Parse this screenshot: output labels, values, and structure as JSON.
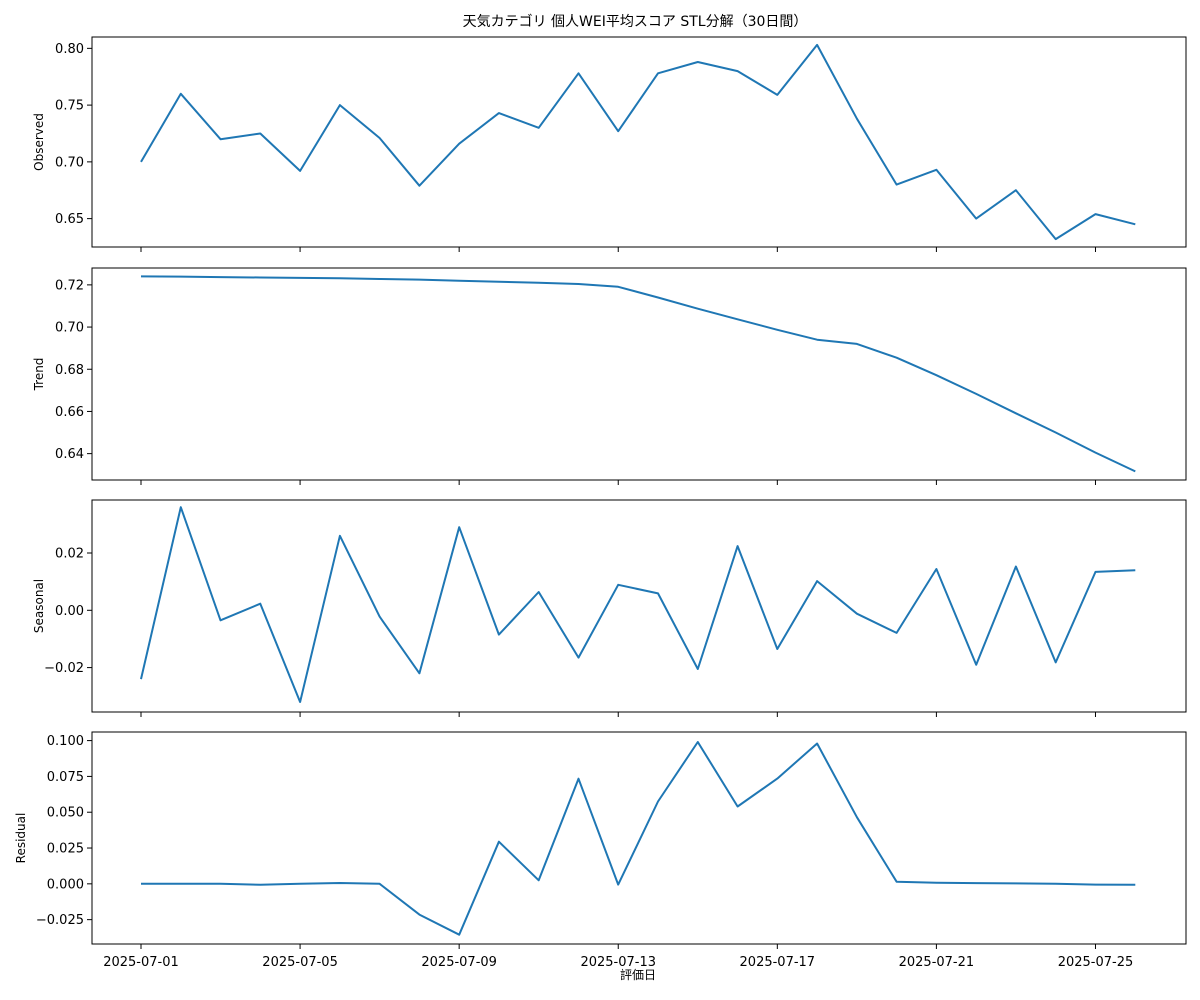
{
  "figure": {
    "title": "天気カテゴリ 個人WEI平均スコア STL分解（30日間）",
    "xlabel": "評価日"
  },
  "colors": {
    "line": "#1f77b4",
    "axes": "#000000",
    "background": "#ffffff"
  },
  "chart_data": [
    {
      "type": "line",
      "name": "observed",
      "ylabel": "Observed",
      "ylim": [
        0.625,
        0.81
      ],
      "yticks": [
        0.65,
        0.7,
        0.75,
        0.8
      ],
      "ytick_labels": [
        "0.65",
        "0.70",
        "0.75",
        "0.80"
      ],
      "x": [
        "2025-07-01",
        "2025-07-02",
        "2025-07-03",
        "2025-07-04",
        "2025-07-05",
        "2025-07-06",
        "2025-07-07",
        "2025-07-08",
        "2025-07-09",
        "2025-07-10",
        "2025-07-11",
        "2025-07-12",
        "2025-07-13",
        "2025-07-14",
        "2025-07-15",
        "2025-07-16",
        "2025-07-17",
        "2025-07-18",
        "2025-07-19",
        "2025-07-20",
        "2025-07-21",
        "2025-07-22",
        "2025-07-23",
        "2025-07-24",
        "2025-07-25",
        "2025-07-26"
      ],
      "values": [
        0.7,
        0.76,
        0.72,
        0.725,
        0.692,
        0.75,
        0.721,
        0.679,
        0.716,
        0.743,
        0.73,
        0.778,
        0.727,
        0.778,
        0.788,
        0.78,
        0.759,
        0.803,
        0.738,
        0.68,
        0.693,
        0.65,
        0.675,
        0.632,
        0.654,
        0.645
      ]
    },
    {
      "type": "line",
      "name": "trend",
      "ylabel": "Trend",
      "ylim": [
        0.6275,
        0.728
      ],
      "yticks": [
        0.64,
        0.66,
        0.68,
        0.7,
        0.72
      ],
      "ytick_labels": [
        "0.64",
        "0.66",
        "0.68",
        "0.70",
        "0.72"
      ],
      "x": [
        "2025-07-01",
        "2025-07-02",
        "2025-07-03",
        "2025-07-04",
        "2025-07-05",
        "2025-07-06",
        "2025-07-07",
        "2025-07-08",
        "2025-07-09",
        "2025-07-10",
        "2025-07-11",
        "2025-07-12",
        "2025-07-13",
        "2025-07-14",
        "2025-07-15",
        "2025-07-16",
        "2025-07-17",
        "2025-07-18",
        "2025-07-19",
        "2025-07-20",
        "2025-07-21",
        "2025-07-22",
        "2025-07-23",
        "2025-07-24",
        "2025-07-25",
        "2025-07-26"
      ],
      "values": [
        0.724,
        0.7239,
        0.7237,
        0.7235,
        0.7233,
        0.7231,
        0.7228,
        0.7225,
        0.722,
        0.7215,
        0.721,
        0.7204,
        0.7191,
        0.714,
        0.7087,
        0.7037,
        0.6987,
        0.694,
        0.692,
        0.6855,
        0.6772,
        0.6683,
        0.6591,
        0.65,
        0.6405,
        0.6316
      ]
    },
    {
      "type": "line",
      "name": "seasonal",
      "ylabel": "Seasonal",
      "ylim": [
        -0.0355,
        0.0385
      ],
      "yticks": [
        -0.02,
        0.0,
        0.02
      ],
      "ytick_labels": [
        "−0.02",
        "0.00",
        "0.02"
      ],
      "x": [
        "2025-07-01",
        "2025-07-02",
        "2025-07-03",
        "2025-07-04",
        "2025-07-05",
        "2025-07-06",
        "2025-07-07",
        "2025-07-08",
        "2025-07-09",
        "2025-07-10",
        "2025-07-11",
        "2025-07-12",
        "2025-07-13",
        "2025-07-14",
        "2025-07-15",
        "2025-07-16",
        "2025-07-17",
        "2025-07-18",
        "2025-07-19",
        "2025-07-20",
        "2025-07-21",
        "2025-07-22",
        "2025-07-23",
        "2025-07-24",
        "2025-07-25",
        "2025-07-26"
      ],
      "values": [
        -0.024,
        0.036,
        -0.0035,
        0.0023,
        -0.032,
        0.026,
        -0.0022,
        -0.022,
        0.029,
        -0.0085,
        0.0064,
        -0.0165,
        0.0089,
        0.0059,
        -0.0205,
        0.0224,
        -0.0135,
        0.0102,
        -0.0012,
        -0.0079,
        0.0144,
        -0.019,
        0.0153,
        -0.0182,
        0.0134,
        0.014
      ]
    },
    {
      "type": "line",
      "name": "residual",
      "ylabel": "Residual",
      "ylim": [
        -0.042,
        0.106
      ],
      "yticks": [
        -0.025,
        0.0,
        0.025,
        0.05,
        0.075,
        0.1
      ],
      "ytick_labels": [
        "−0.025",
        "0.000",
        "0.025",
        "0.050",
        "0.075",
        "0.100"
      ],
      "x": [
        "2025-07-01",
        "2025-07-02",
        "2025-07-03",
        "2025-07-04",
        "2025-07-05",
        "2025-07-06",
        "2025-07-07",
        "2025-07-08",
        "2025-07-09",
        "2025-07-10",
        "2025-07-11",
        "2025-07-12",
        "2025-07-13",
        "2025-07-14",
        "2025-07-15",
        "2025-07-16",
        "2025-07-17",
        "2025-07-18",
        "2025-07-19",
        "2025-07-20",
        "2025-07-21",
        "2025-07-22",
        "2025-07-23",
        "2025-07-24",
        "2025-07-25",
        "2025-07-26"
      ],
      "values": [
        0.0,
        0.0,
        0.0,
        -0.0007,
        0.0,
        0.0006,
        0.0,
        -0.0215,
        -0.0355,
        0.0294,
        0.0025,
        0.0734,
        -0.0005,
        0.0575,
        0.099,
        0.054,
        0.0735,
        0.098,
        0.0465,
        0.0015,
        0.0007,
        0.0005,
        0.0003,
        0.0,
        -0.0005,
        -0.0006
      ]
    }
  ],
  "x_axis": {
    "ticks": [
      "2025-07-01",
      "2025-07-05",
      "2025-07-09",
      "2025-07-13",
      "2025-07-17",
      "2025-07-21",
      "2025-07-25"
    ],
    "tick_labels": [
      "2025-07-01",
      "2025-07-05",
      "2025-07-09",
      "2025-07-13",
      "2025-07-17",
      "2025-07-21",
      "2025-07-25"
    ]
  }
}
